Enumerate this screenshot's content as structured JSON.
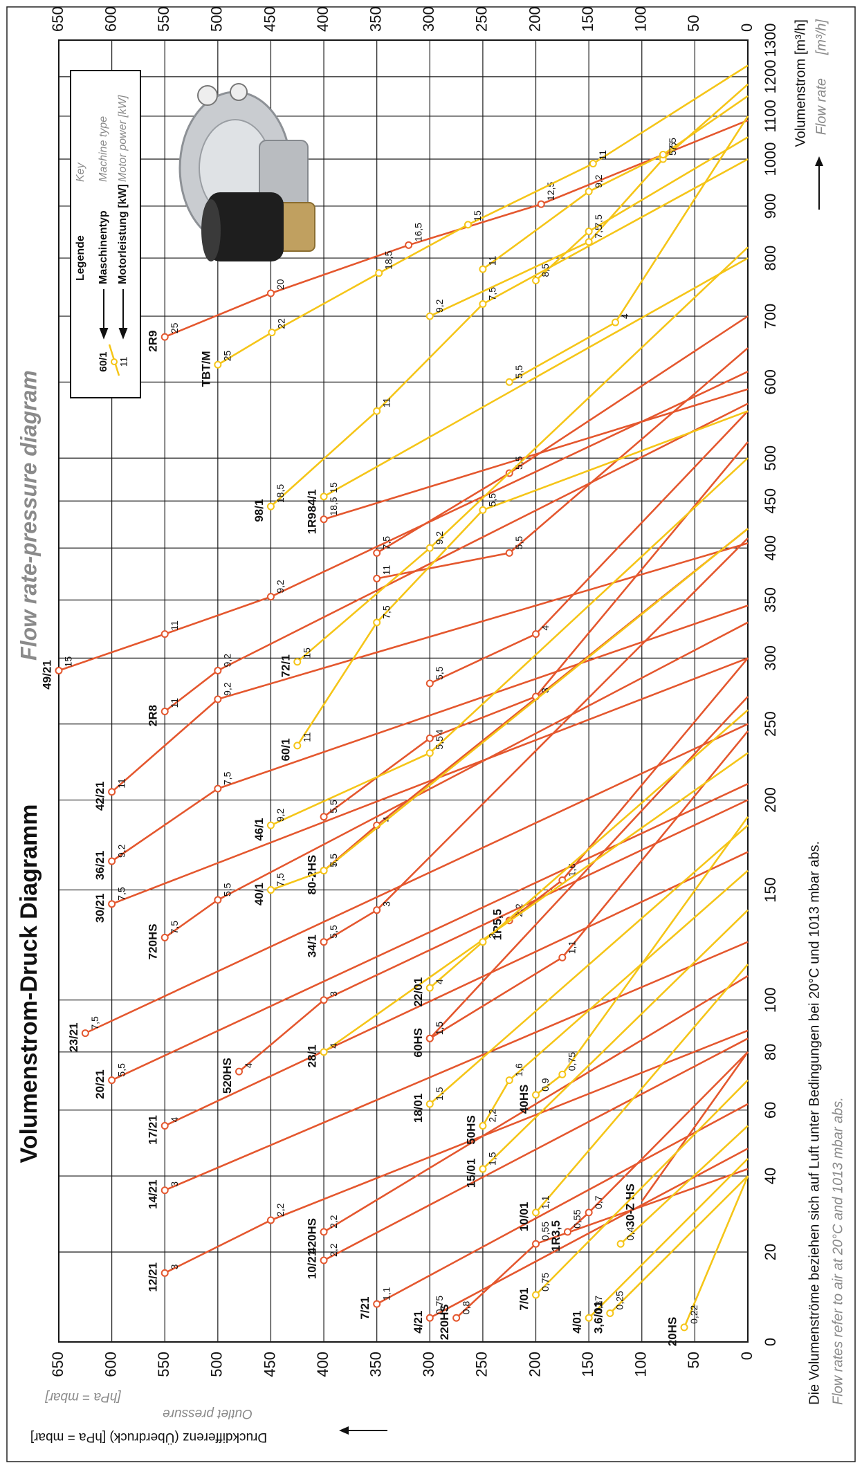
{
  "chart_data": {
    "type": "line",
    "title": "Volumenstrom-Druck Diagramm",
    "subtitle": "Flow rate-pressure diagram",
    "x_label": "Volumenstrom  [m³/h]",
    "x_label_en": "Flow rate",
    "x_unit_en": "[m³/h]",
    "y_label": "Druckdifferenz (Überdruck)  [hPa = mbar]",
    "y_label_en": "Outlet pressure",
    "y_unit_en": "[hPa = mbar]",
    "note": "Die Volumenströme beziehen sich auf Luft unter Bedingungen bei 20°C und 1013 mbar abs.",
    "note_en": "Flow rates refer to air at 20°C and 1013 mbar abs.",
    "legend": {
      "title": "Legende",
      "title_en": "Key",
      "machine_type": "Maschinentyp",
      "machine_type_en": "Machine type",
      "motor_power": "Motorleistung [kW]",
      "motor_power_en": "Motor power [kW]",
      "example_name": "60/1",
      "example_kw": "11"
    },
    "xlim": [
      0,
      1300
    ],
    "ylim": [
      0,
      650
    ],
    "xticks": [
      0,
      20,
      40,
      60,
      80,
      100,
      150,
      200,
      250,
      300,
      350,
      400,
      450,
      500,
      600,
      700,
      800,
      900,
      1000,
      1100,
      1200,
      1300
    ],
    "yticks": [
      0,
      50,
      100,
      150,
      200,
      250,
      300,
      350,
      400,
      450,
      500,
      550,
      600,
      650
    ],
    "grid": true,
    "series": [
      {
        "name": "12/21",
        "color": "#e4572e",
        "x": [
          15,
          28,
          88
        ],
        "values": [
          550,
          450,
          0
        ],
        "labels": [
          "3",
          "2,2",
          null
        ]
      },
      {
        "name": "14/21",
        "color": "#e4572e",
        "x": [
          36,
          125
        ],
        "values": [
          550,
          0
        ],
        "labels": [
          "3",
          null
        ]
      },
      {
        "name": "17/21",
        "color": "#e4572e",
        "x": [
          55,
          170
        ],
        "values": [
          550,
          0
        ],
        "labels": [
          "4",
          null
        ]
      },
      {
        "name": "20/21",
        "color": "#e4572e",
        "x": [
          70,
          210
        ],
        "values": [
          600,
          0
        ],
        "labels": [
          "5,5",
          null
        ]
      },
      {
        "name": "23/21",
        "color": "#e4572e",
        "x": [
          87,
          250
        ],
        "values": [
          625,
          0
        ],
        "labels": [
          "7,5",
          null
        ]
      },
      {
        "name": "30/21",
        "color": "#e4572e",
        "x": [
          143,
          300
        ],
        "values": [
          600,
          0
        ],
        "labels": [
          "7,5",
          null
        ]
      },
      {
        "name": "36/21",
        "color": "#e4572e",
        "x": [
          165,
          207,
          345
        ],
        "values": [
          600,
          500,
          0
        ],
        "labels": [
          "9,2",
          "7,5",
          null
        ]
      },
      {
        "name": "42/21",
        "color": "#e4572e",
        "x": [
          205,
          268,
          405
        ],
        "values": [
          600,
          500,
          0
        ],
        "labels": [
          "11",
          "9,2",
          null
        ]
      },
      {
        "name": "49/21",
        "color": "#e4572e",
        "x": [
          290,
          320,
          353,
          615
        ],
        "values": [
          650,
          550,
          450,
          0
        ],
        "labels": [
          "15",
          "11",
          "9,2",
          null
        ]
      },
      {
        "name": "720HS",
        "color": "#e4572e",
        "x": [
          127,
          145,
          330
        ],
        "values": [
          550,
          500,
          0
        ],
        "labels": [
          "7,5",
          "5,5",
          null
        ]
      },
      {
        "name": "520HS",
        "color": "#e4572e",
        "x": [
          73,
          100,
          200
        ],
        "values": [
          480,
          400,
          0
        ],
        "labels": [
          "4",
          "3",
          null
        ]
      },
      {
        "name": "2R8",
        "color": "#e4572e",
        "x": [
          259,
          290,
          570
        ],
        "values": [
          550,
          500,
          0
        ],
        "labels": [
          "11",
          "9,2",
          null
        ]
      },
      {
        "name": "2R9",
        "color": "#e4572e",
        "x": [
          667,
          738,
          824,
          904,
          1090
        ],
        "values": [
          550,
          450,
          320,
          195,
          0
        ],
        "labels": [
          "25",
          "20",
          "16,5",
          "12,5",
          null
        ]
      },
      {
        "name": "420HS",
        "color": "#e4572e",
        "x": [
          25,
          110
        ],
        "values": [
          400,
          0
        ],
        "labels": [
          "2,2",
          null
        ]
      },
      {
        "name": "10/21",
        "color": "#e4572e",
        "x": [
          18,
          85
        ],
        "values": [
          400,
          0
        ],
        "labels": [
          "2,2",
          null
        ]
      },
      {
        "name": "7/21",
        "color": "#e4572e",
        "x": [
          8,
          62
        ],
        "values": [
          350,
          0
        ],
        "labels": [
          "1,1",
          null
        ]
      },
      {
        "name": "4/21",
        "color": "#e4572e",
        "x": [
          5,
          48
        ],
        "values": [
          300,
          0
        ],
        "labels": [
          "0,75",
          null
        ]
      },
      {
        "name": "220HS",
        "color": "#e4572e",
        "x": [
          5,
          22,
          42
        ],
        "values": [
          275,
          200,
          0
        ],
        "labels": [
          "0,8",
          "0,55",
          null
        ]
      },
      {
        "name": "60HS",
        "color": "#e4572e",
        "x": [
          85,
          270
        ],
        "values": [
          300,
          0
        ],
        "labels": [
          "1,5",
          null
        ]
      },
      {
        "name": "80-2HS",
        "color": "#e4572e",
        "x": [
          160,
          185,
          420
        ],
        "values": [
          400,
          350,
          0
        ],
        "labels": [
          "7,5",
          "4",
          null
        ]
      },
      {
        "name": "34/1",
        "color": "#e4572e",
        "x": [
          125,
          140,
          410
        ],
        "values": [
          400,
          350,
          0
        ],
        "labels": [
          "5,5",
          "3",
          null
        ]
      },
      {
        "name": "1R9",
        "color": "#e4572e",
        "x": [
          430,
          590
        ],
        "values": [
          400,
          0
        ],
        "labels": [
          "18,5",
          null
        ]
      },
      {
        "name": "1R5,5",
        "color": "#e4572e",
        "x": [
          135,
          155,
          300
        ],
        "values": [
          225,
          175,
          0
        ],
        "labels": [
          "2,2",
          "1,6",
          null
        ]
      },
      {
        "name": "1R3,5",
        "color": "#e4572e",
        "x": [
          25,
          30,
          80
        ],
        "values": [
          170,
          150,
          0
        ],
        "labels": [
          "0,55",
          "0,7",
          null
        ]
      },
      {
        "name": "30-Z HS",
        "color": "#e4572e",
        "x": [
          33,
          80
        ],
        "values": [
          100,
          0
        ],
        "labels": [
          null,
          null
        ]
      },
      {
        "color": "#e4572e",
        "x": [
          280,
          320,
          560
        ],
        "values": [
          300,
          200,
          0
        ],
        "labels": [
          "5,5",
          "4",
          null
        ]
      },
      {
        "color": "#e4572e",
        "x": [
          190,
          240,
          270,
          520
        ],
        "values": [
          400,
          300,
          200,
          0
        ],
        "labels": [
          "5,5",
          "4",
          "3",
          null
        ]
      },
      {
        "color": "#e4572e",
        "x": [
          395,
          482,
          700
        ],
        "values": [
          350,
          225,
          0
        ],
        "labels": [
          "7,5",
          "5,5",
          null
        ]
      },
      {
        "color": "#e4572e",
        "x": [
          370,
          395,
          650
        ],
        "values": [
          350,
          225,
          0
        ],
        "labels": [
          "11",
          "5,5",
          null
        ]
      },
      {
        "color": "#e4572e",
        "x": [
          85,
          118,
          245
        ],
        "values": [
          300,
          175,
          0
        ],
        "labels": [
          "1,5",
          "1,1",
          null
        ]
      },
      {
        "name": "60/1",
        "color": "#f5c518",
        "x": [
          235,
          330,
          440,
          560
        ],
        "values": [
          425,
          350,
          250,
          0
        ],
        "labels": [
          "11",
          "7,5",
          "5,5",
          null
        ]
      },
      {
        "name": "72/1",
        "color": "#f5c518",
        "x": [
          297,
          400,
          820
        ],
        "values": [
          425,
          300,
          0
        ],
        "labels": [
          "15",
          "9,2",
          null
        ]
      },
      {
        "name": "98/1",
        "color": "#f5c518",
        "x": [
          444,
          560,
          720,
          1000
        ],
        "values": [
          450,
          350,
          250,
          0
        ],
        "labels": [
          "18,5",
          "11",
          "7,5",
          null
        ]
      },
      {
        "name": "84/1",
        "color": "#f5c518",
        "x": [
          455,
          800
        ],
        "values": [
          400,
          0
        ],
        "labels": [
          "15",
          null
        ]
      },
      {
        "name": "TBT/M",
        "color": "#f5c518",
        "x": [
          625,
          674,
          773,
          863,
          990,
          1230
        ],
        "values": [
          500,
          449,
          348,
          264,
          146,
          0
        ],
        "labels": [
          "25",
          "22",
          "18,5",
          "15",
          "11",
          null
        ]
      },
      {
        "name": "46/1",
        "color": "#f5c518",
        "x": [
          185,
          230,
          500
        ],
        "values": [
          450,
          300,
          0
        ],
        "labels": [
          "9,2",
          "5,5",
          null
        ]
      },
      {
        "name": "40/1",
        "color": "#f5c518",
        "x": [
          150,
          160,
          420
        ],
        "values": [
          450,
          400,
          0
        ],
        "labels": [
          "7,5",
          "5,5",
          null
        ]
      },
      {
        "name": "28/1",
        "color": "#f5c518",
        "x": [
          80,
          230
        ],
        "values": [
          400,
          0
        ],
        "labels": [
          "4",
          null
        ]
      },
      {
        "name": "22/01",
        "color": "#f5c518",
        "x": [
          105,
          125,
          260
        ],
        "values": [
          300,
          250,
          0
        ],
        "labels": [
          "4",
          "3",
          null
        ]
      },
      {
        "name": "18/01",
        "color": "#f5c518",
        "x": [
          62,
          185
        ],
        "values": [
          300,
          0
        ],
        "labels": [
          "1,5",
          null
        ]
      },
      {
        "name": "15/01",
        "color": "#f5c518",
        "x": [
          42,
          140
        ],
        "values": [
          250,
          0
        ],
        "labels": [
          "1,5",
          null
        ]
      },
      {
        "name": "50HS",
        "color": "#f5c518",
        "x": [
          55,
          70,
          160
        ],
        "values": [
          250,
          225,
          0
        ],
        "labels": [
          "2,2",
          "1,6",
          null
        ]
      },
      {
        "name": "10/01",
        "color": "#f5c518",
        "x": [
          30,
          115
        ],
        "values": [
          200,
          0
        ],
        "labels": [
          "1,1",
          null
        ]
      },
      {
        "name": "7/01",
        "color": "#f5c518",
        "x": [
          10,
          70
        ],
        "values": [
          200,
          0
        ],
        "labels": [
          "0,75",
          null
        ]
      },
      {
        "name": "4/01",
        "color": "#f5c518",
        "x": [
          5,
          45
        ],
        "values": [
          150,
          0
        ],
        "labels": [
          "0,37",
          null
        ]
      },
      {
        "name": "3,6/01",
        "color": "#f5c518",
        "x": [
          6,
          40
        ],
        "values": [
          130,
          0
        ],
        "labels": [
          "0,25",
          null
        ]
      },
      {
        "name": "40HS",
        "color": "#f5c518",
        "x": [
          65,
          72,
          190
        ],
        "values": [
          200,
          175,
          0
        ],
        "labels": [
          "0,9",
          "0,75",
          null
        ]
      },
      {
        "name": "20HS",
        "color": "#f5c518",
        "x": [
          3,
          40
        ],
        "values": [
          60,
          0
        ],
        "labels": [
          "0,22",
          null
        ]
      },
      {
        "color": "#f5c518",
        "x": [
          22,
          55
        ],
        "values": [
          120,
          0
        ],
        "labels": [
          "0,4",
          null
        ]
      },
      {
        "color": "#f5c518",
        "x": [
          600,
          690,
          1100
        ],
        "values": [
          225,
          125,
          0
        ],
        "labels": [
          "5,5",
          "4",
          null
        ]
      },
      {
        "color": "#f5c518",
        "x": [
          700,
          830,
          1000,
          1180
        ],
        "values": [
          300,
          150,
          80,
          0
        ],
        "labels": [
          "9,2",
          "7,5",
          "5,5",
          null
        ]
      },
      {
        "color": "#f5c518",
        "x": [
          780,
          930,
          1010,
          1150
        ],
        "values": [
          250,
          150,
          80,
          0
        ],
        "labels": [
          "11",
          "9,2",
          "7,5",
          null
        ]
      },
      {
        "color": "#f5c518",
        "x": [
          760,
          850,
          1050
        ],
        "values": [
          200,
          150,
          0
        ],
        "labels": [
          "8,5",
          "7,5",
          null
        ]
      }
    ]
  }
}
